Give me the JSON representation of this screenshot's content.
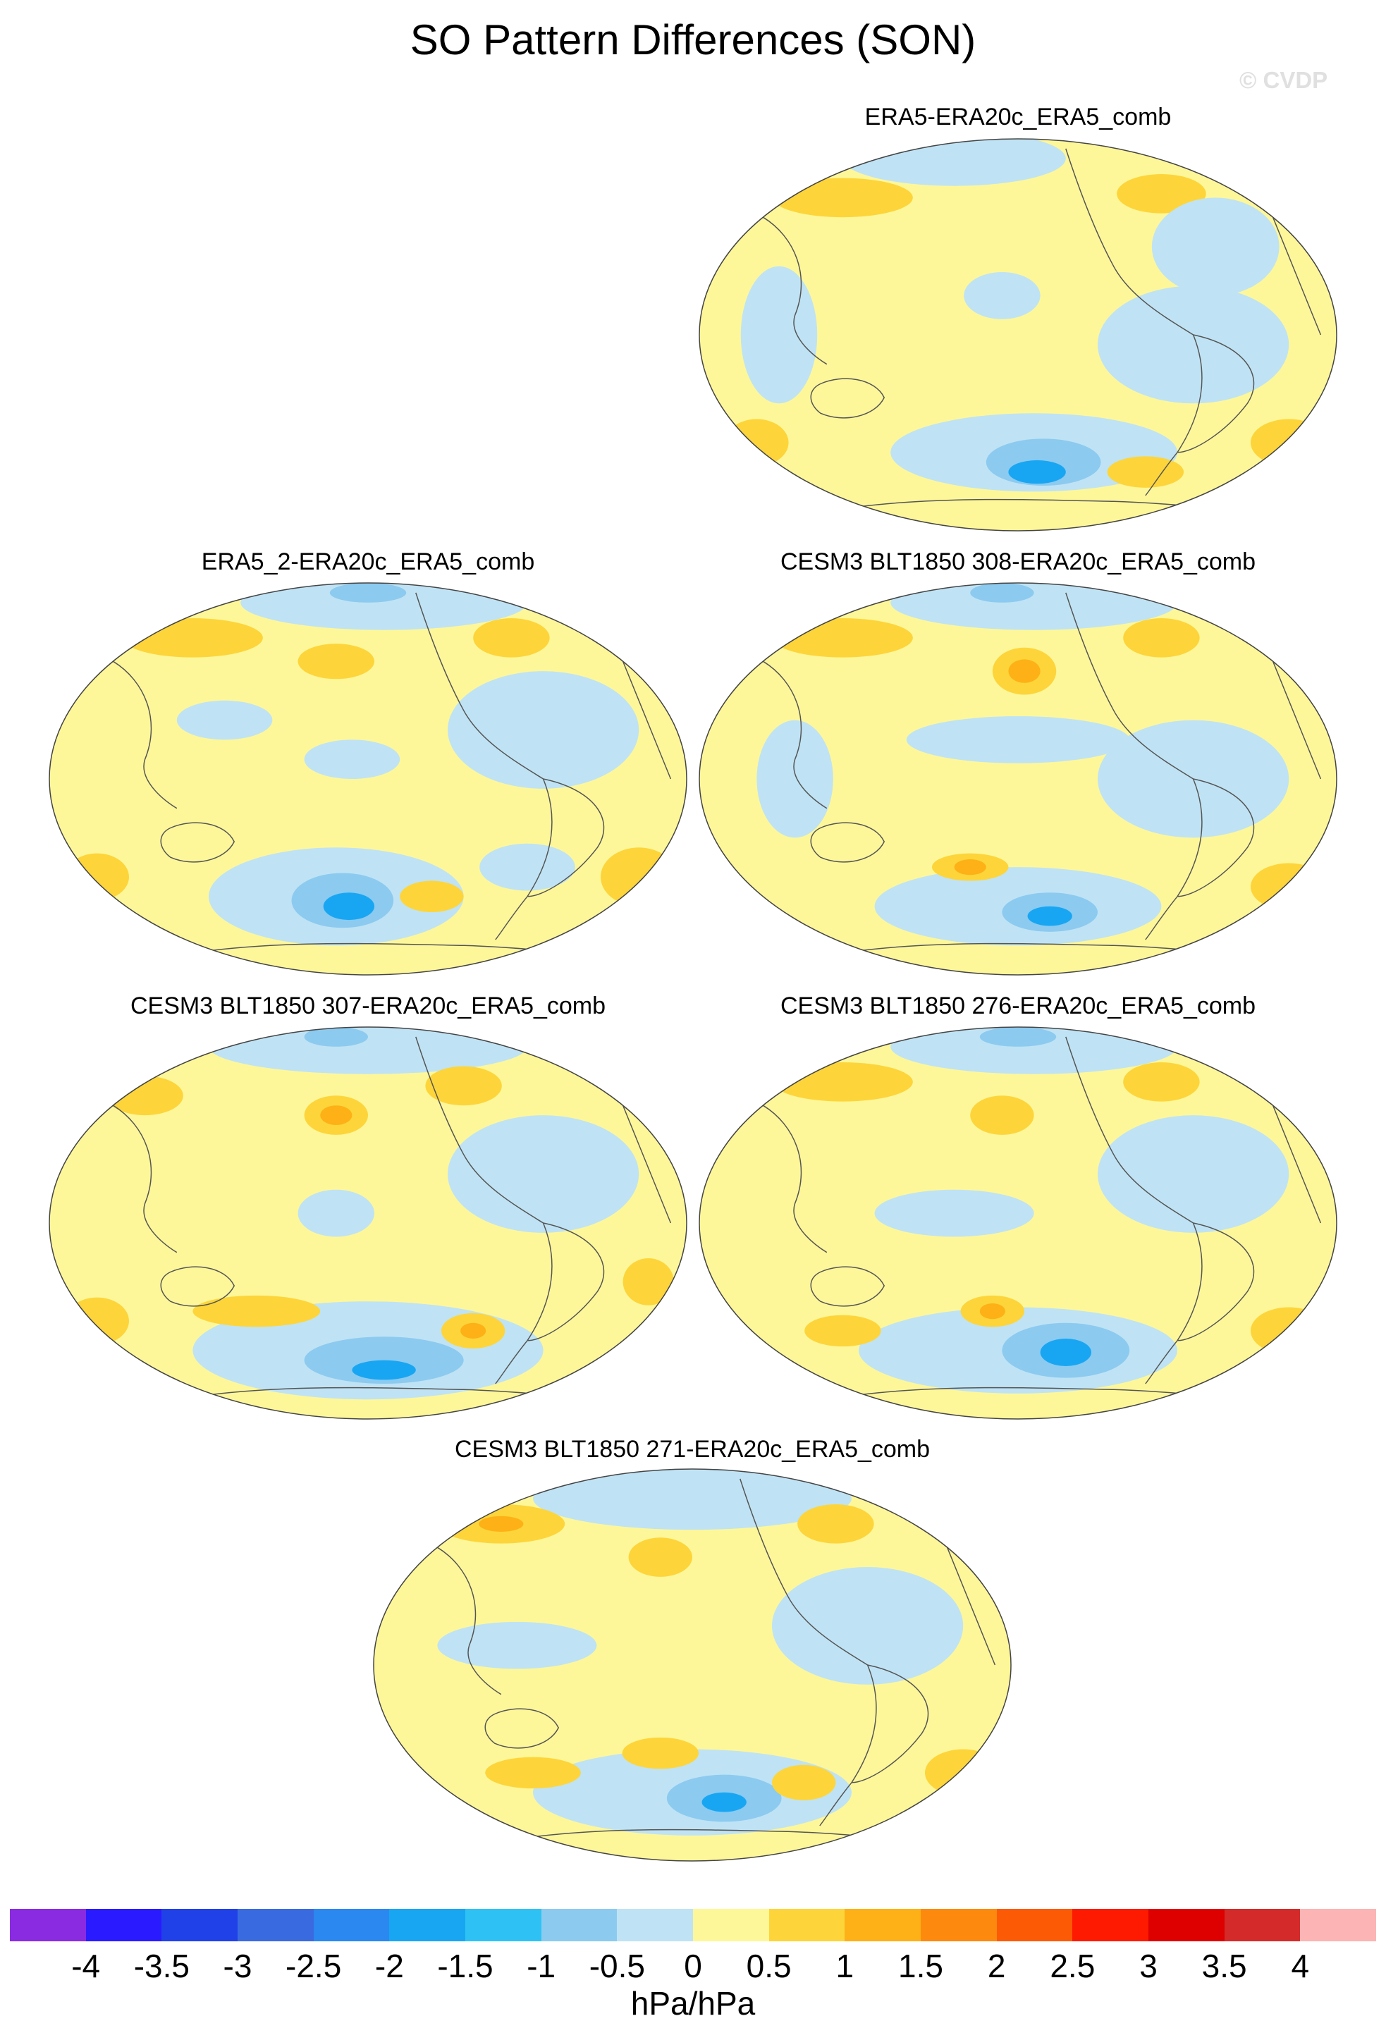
{
  "title": "SO Pattern Differences (SON)",
  "watermark": "© CVDP",
  "units": "hPa/hPa",
  "panels": [
    {
      "title": "ERA5-ERA20c_ERA5_comb"
    },
    {
      "title": "ERA5_2-ERA20c_ERA5_comb"
    },
    {
      "title": "CESM3 BLT1850 308-ERA20c_ERA5_comb"
    },
    {
      "title": "CESM3 BLT1850 307-ERA20c_ERA5_comb"
    },
    {
      "title": "CESM3 BLT1850 276-ERA20c_ERA5_comb"
    },
    {
      "title": "CESM3 BLT1850 271-ERA20c_ERA5_comb"
    }
  ],
  "colorbar": {
    "ticks": [
      "-4",
      "-3.5",
      "-3",
      "-2.5",
      "-2",
      "-1.5",
      "-1",
      "-0.5",
      "0",
      "0.5",
      "1",
      "1.5",
      "2",
      "2.5",
      "3",
      "3.5",
      "4"
    ],
    "colors": [
      "#8a2be2",
      "#2a1aff",
      "#2040e8",
      "#3a6ae0",
      "#2a88f0",
      "#18a6f2",
      "#2ec2f4",
      "#8ccaf0",
      "#bfe3f4",
      "#fef79a",
      "#fdd53a",
      "#fdb116",
      "#fd8a0e",
      "#fd5a06",
      "#fd1a00",
      "#de0000",
      "#d42a2a",
      "#fcb4b4"
    ]
  },
  "colors": {
    "ocean_neutral": "#fef79a",
    "negative_light": "#bfe3f4",
    "negative_mid": "#8ccaf0",
    "negative_strong": "#18a6f2",
    "positive_light": "#fdd53a",
    "positive_mid": "#fdb116",
    "coastline": "#555555"
  }
}
